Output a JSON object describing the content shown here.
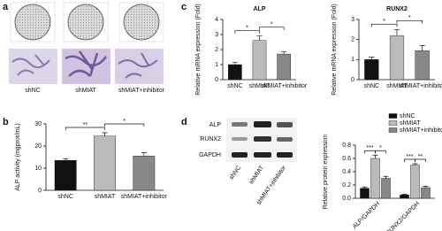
{
  "panels": [
    "a",
    "b",
    "c",
    "d"
  ],
  "panel_a": {
    "labels": [
      "shNC",
      "shMIAT",
      "shMIAT+inhibitor"
    ]
  },
  "blot": {
    "proteins": [
      "ALP",
      "RUNX2",
      "GAPDH"
    ],
    "lanes": [
      "shNC",
      "shMIAT",
      "shMIAT+inhibitor"
    ]
  },
  "chart_data": [
    {
      "type": "bar",
      "ylabel": "ALP activity (mgprot/mL)",
      "categories": [
        "shNC",
        "shMIAT",
        "shMIAT+inhibitor"
      ],
      "values": [
        13.5,
        24.5,
        15.5
      ],
      "errors": [
        0.8,
        1.5,
        1.5
      ],
      "colors": [
        "#111111",
        "#bbbbbb",
        "#888888"
      ],
      "ylim": [
        0,
        30
      ],
      "yticks": [
        0,
        10,
        20,
        30
      ],
      "significance": [
        {
          "pair": [
            0,
            1
          ],
          "text": "**"
        },
        {
          "pair": [
            1,
            2
          ],
          "text": "*"
        }
      ]
    },
    {
      "type": "bar",
      "title": "ALP",
      "ylabel": "Relative mRNA expression (Fold)",
      "categories": [
        "shNC",
        "shMIAT",
        "shMIAT+inhibitor"
      ],
      "values": [
        1.0,
        2.6,
        1.7
      ],
      "errors": [
        0.15,
        0.3,
        0.15
      ],
      "colors": [
        "#111111",
        "#bbbbbb",
        "#888888"
      ],
      "ylim": [
        0,
        4
      ],
      "yticks": [
        0,
        1,
        2,
        3,
        4
      ],
      "significance": [
        {
          "pair": [
            0,
            1
          ],
          "text": "*"
        },
        {
          "pair": [
            1,
            2
          ],
          "text": "*"
        }
      ]
    },
    {
      "type": "bar",
      "title": "RUNX2",
      "ylabel": "Relative mRNA expression (Fold)",
      "categories": [
        "shNC",
        "shMIAT",
        "shMIAT+inhibitor"
      ],
      "values": [
        1.0,
        2.2,
        1.45
      ],
      "errors": [
        0.12,
        0.3,
        0.25
      ],
      "colors": [
        "#111111",
        "#bbbbbb",
        "#888888"
      ],
      "ylim": [
        0,
        3
      ],
      "yticks": [
        0,
        1,
        2,
        3
      ],
      "significance": [
        {
          "pair": [
            0,
            1
          ],
          "text": "*"
        },
        {
          "pair": [
            1,
            2
          ],
          "text": "*"
        }
      ]
    },
    {
      "type": "grouped-bar",
      "ylabel": "Relative protein expression",
      "categories": [
        "ALP/GAPDH",
        "RUNX2/GAPDH"
      ],
      "series": [
        {
          "name": "shNC",
          "color": "#111111",
          "values": [
            0.15,
            0.05
          ],
          "errors": [
            0.02,
            0.01
          ]
        },
        {
          "name": "shMIAT",
          "color": "#bbbbbb",
          "values": [
            0.6,
            0.5
          ],
          "errors": [
            0.05,
            0.02
          ]
        },
        {
          "name": "shMIAT+inhibitor",
          "color": "#888888",
          "values": [
            0.3,
            0.16
          ],
          "errors": [
            0.03,
            0.02
          ]
        }
      ],
      "ylim": [
        0,
        0.8
      ],
      "yticks": [
        {
          "value": 0,
          "label": "0.0"
        },
        0.2,
        0.4,
        0.6,
        0.8
      ],
      "legend": "top-right",
      "significance": [
        {
          "category": 0,
          "pair": [
            0,
            1
          ],
          "text": "***"
        },
        {
          "category": 0,
          "pair": [
            1,
            2
          ],
          "text": "*"
        },
        {
          "category": 1,
          "pair": [
            0,
            1
          ],
          "text": "***"
        },
        {
          "category": 1,
          "pair": [
            1,
            2
          ],
          "text": "**"
        }
      ]
    }
  ]
}
